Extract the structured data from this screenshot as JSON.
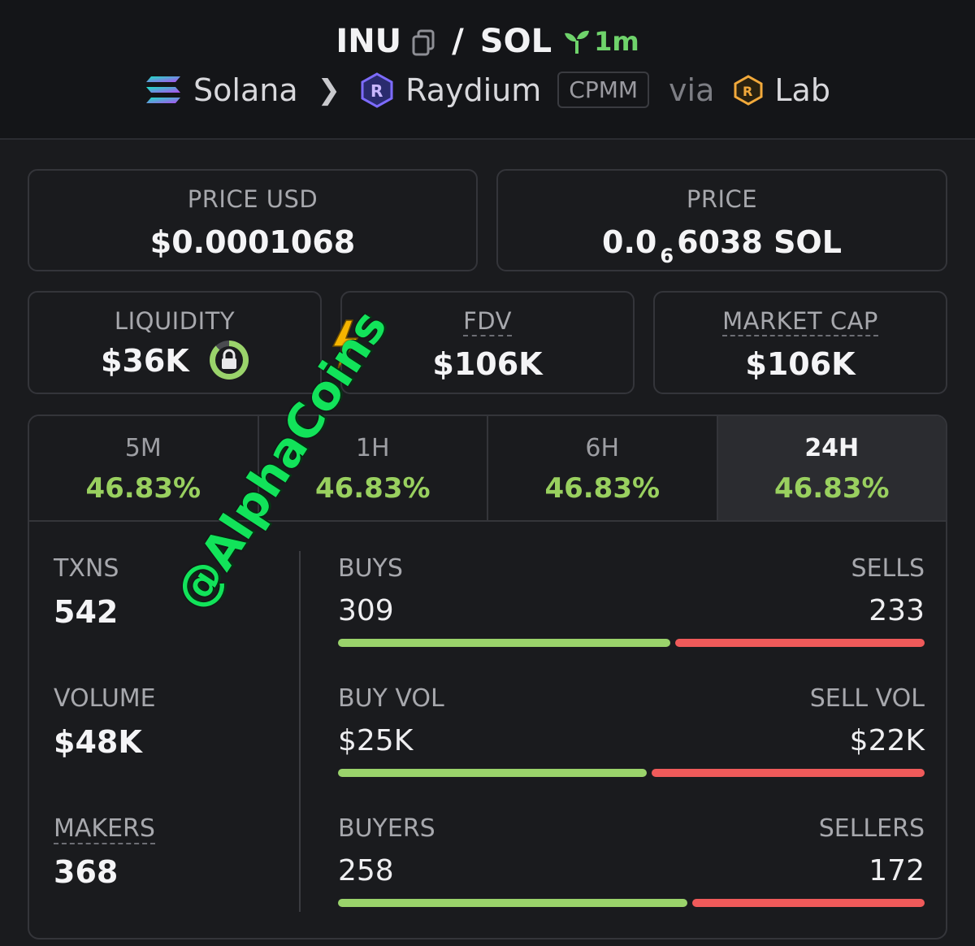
{
  "header": {
    "base_token": "INU",
    "quote_token": "SOL",
    "separator": "/",
    "age": "1m",
    "chain": "Solana",
    "dex": "Raydium",
    "pool_type": "CPMM",
    "via_label": "via",
    "launchpad": "Lab"
  },
  "price_usd": {
    "label": "PRICE USD",
    "value": "$0.0001068"
  },
  "price_native": {
    "label": "PRICE",
    "prefix": "0.0",
    "zeros": "6",
    "digits": "6038",
    "unit": "SOL"
  },
  "liquidity": {
    "label": "LIQUIDITY",
    "value": "$36K",
    "locked_fraction": 0.88
  },
  "fdv": {
    "label": "FDV",
    "value": "$106K"
  },
  "market_cap": {
    "label": "MARKET CAP",
    "value": "$106K"
  },
  "tabs": [
    {
      "label": "5M",
      "change": "46.83%"
    },
    {
      "label": "1H",
      "change": "46.83%"
    },
    {
      "label": "6H",
      "change": "46.83%"
    },
    {
      "label": "24H",
      "change": "46.83%"
    }
  ],
  "active_tab": "24H",
  "stats": {
    "txns": {
      "label": "TXNS",
      "value": "542"
    },
    "volume": {
      "label": "VOLUME",
      "value": "$48K"
    },
    "makers": {
      "label": "MAKERS",
      "value": "368"
    }
  },
  "rows": [
    {
      "left_label": "BUYS",
      "left_value": "309",
      "right_label": "SELLS",
      "right_value": "233",
      "buy_fraction": 0.57
    },
    {
      "left_label": "BUY VOL",
      "left_value": "$25K",
      "right_label": "SELL VOL",
      "right_value": "$22K",
      "buy_fraction": 0.53
    },
    {
      "left_label": "BUYERS",
      "left_value": "258",
      "right_label": "SELLERS",
      "right_value": "172",
      "buy_fraction": 0.6
    }
  ],
  "watermark": "@AlphaCoins",
  "colors": {
    "positive": "#99d05f",
    "buy_bar": "#9ad36b",
    "sell_bar": "#ef5a5a",
    "age": "#6fd36b"
  }
}
